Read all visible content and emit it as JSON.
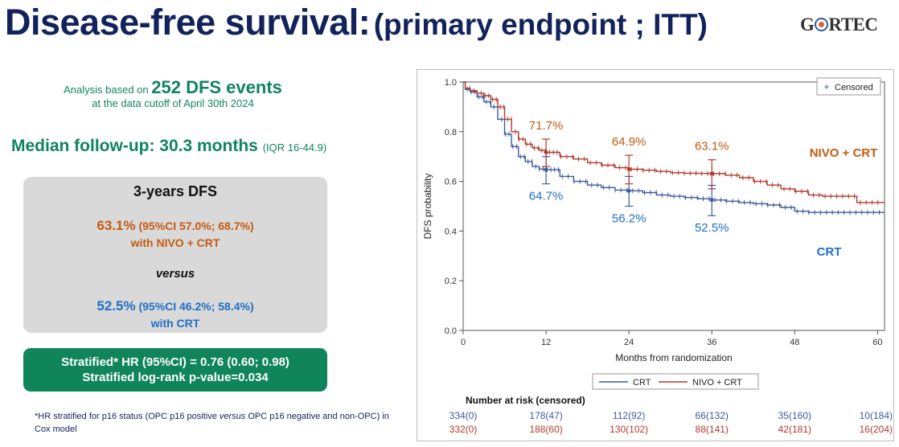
{
  "header": {
    "title_main": "Disease-free survival:",
    "title_sub": "(primary endpoint ; ITT)",
    "logo_text_before": "G",
    "logo_text_after": "RTEC"
  },
  "analysis": {
    "line1_prefix": "Analysis based on",
    "events": "252 DFS events",
    "line2": "at the data cutoff of April 30th 2024"
  },
  "followup": {
    "label": "Median follow-up: 30.3 months",
    "iqr": "(IQR 16-44.9)"
  },
  "dfs_box": {
    "heading": "3-years DFS",
    "nivo_pct": "63.1%",
    "nivo_ci": "(95%CI 57.0%; 68.7%)",
    "nivo_label": "with NIVO + CRT",
    "versus": "versus",
    "crt_pct": "52.5%",
    "crt_ci": "(95%CI 46.2%; 58.4%)",
    "crt_label": "with CRT"
  },
  "hr_box": {
    "line1": "Stratified* HR (95%CI) = 0.76 (0.60; 0.98)",
    "line2": "Stratified log-rank p-value=0.034"
  },
  "footnote": {
    "part1": "*HR stratified for p16 status (OPC p16 positive",
    "versus": "versus",
    "part2": "OPC p16 negative and non-OPC) in Cox model"
  },
  "colors": {
    "nivo": "#b03a2e",
    "crt": "#3c5aa0",
    "nivo_label": "#c55a11",
    "crt_label": "#1f6fc5",
    "green": "#10855c",
    "navy": "#12235b"
  },
  "chart_data": {
    "type": "line",
    "title": "",
    "xlabel": "Months from randomization",
    "ylabel": "DFS probability",
    "xlim": [
      0,
      61
    ],
    "ylim": [
      0,
      1
    ],
    "xticks": [
      0,
      12,
      24,
      36,
      48,
      60
    ],
    "yticks": [
      0.0,
      0.2,
      0.4,
      0.6,
      0.8,
      1.0
    ],
    "censored_legend": "Censored",
    "series": [
      {
        "name": "CRT",
        "key": "crt",
        "label": "CRT",
        "steps": [
          [
            0,
            1.0
          ],
          [
            0.3,
            0.97
          ],
          [
            1,
            0.96
          ],
          [
            2,
            0.94
          ],
          [
            3,
            0.92
          ],
          [
            4,
            0.9
          ],
          [
            5,
            0.85
          ],
          [
            6,
            0.79
          ],
          [
            7,
            0.74
          ],
          [
            8,
            0.7
          ],
          [
            9,
            0.68
          ],
          [
            10,
            0.66
          ],
          [
            11,
            0.65
          ],
          [
            12,
            0.647
          ],
          [
            14,
            0.62
          ],
          [
            16,
            0.6
          ],
          [
            18,
            0.585
          ],
          [
            20,
            0.575
          ],
          [
            22,
            0.565
          ],
          [
            24,
            0.562
          ],
          [
            26,
            0.555
          ],
          [
            28,
            0.545
          ],
          [
            30,
            0.54
          ],
          [
            32,
            0.535
          ],
          [
            34,
            0.53
          ],
          [
            36,
            0.525
          ],
          [
            38,
            0.52
          ],
          [
            40,
            0.515
          ],
          [
            42,
            0.51
          ],
          [
            44,
            0.505
          ],
          [
            46,
            0.495
          ],
          [
            48,
            0.48
          ],
          [
            50,
            0.475
          ],
          [
            52,
            0.475
          ],
          [
            61,
            0.475
          ]
        ],
        "annotations": [
          {
            "x": 12,
            "y": 0.647,
            "lo": 0.59,
            "hi": 0.7,
            "label": "64.7%"
          },
          {
            "x": 24,
            "y": 0.562,
            "lo": 0.5,
            "hi": 0.62,
            "label": "56.2%"
          },
          {
            "x": 36,
            "y": 0.525,
            "lo": 0.462,
            "hi": 0.584,
            "label": "52.5%"
          }
        ]
      },
      {
        "name": "NIVO + CRT",
        "key": "nivo",
        "label": "NIVO + CRT",
        "steps": [
          [
            0,
            1.0
          ],
          [
            0.3,
            0.975
          ],
          [
            1,
            0.965
          ],
          [
            2,
            0.955
          ],
          [
            3,
            0.945
          ],
          [
            4,
            0.93
          ],
          [
            5,
            0.9
          ],
          [
            6,
            0.85
          ],
          [
            7,
            0.8
          ],
          [
            8,
            0.77
          ],
          [
            9,
            0.75
          ],
          [
            10,
            0.735
          ],
          [
            11,
            0.725
          ],
          [
            12,
            0.717
          ],
          [
            14,
            0.7
          ],
          [
            16,
            0.69
          ],
          [
            18,
            0.675
          ],
          [
            20,
            0.665
          ],
          [
            22,
            0.655
          ],
          [
            24,
            0.649
          ],
          [
            26,
            0.645
          ],
          [
            28,
            0.64
          ],
          [
            30,
            0.635
          ],
          [
            32,
            0.633
          ],
          [
            34,
            0.632
          ],
          [
            36,
            0.631
          ],
          [
            38,
            0.625
          ],
          [
            40,
            0.615
          ],
          [
            42,
            0.6
          ],
          [
            44,
            0.585
          ],
          [
            46,
            0.57
          ],
          [
            48,
            0.56
          ],
          [
            50,
            0.545
          ],
          [
            52,
            0.54
          ],
          [
            55,
            0.54
          ],
          [
            57,
            0.515
          ],
          [
            61,
            0.515
          ]
        ],
        "annotations": [
          {
            "x": 12,
            "y": 0.717,
            "lo": 0.66,
            "hi": 0.77,
            "label": "71.7%"
          },
          {
            "x": 24,
            "y": 0.649,
            "lo": 0.59,
            "hi": 0.705,
            "label": "64.9%"
          },
          {
            "x": 36,
            "y": 0.631,
            "lo": 0.57,
            "hi": 0.687,
            "label": "63.1%"
          }
        ]
      }
    ],
    "legend": [
      "CRT",
      "NIVO + CRT"
    ],
    "risk_table": {
      "title": "Number at risk (censored)",
      "times": [
        0,
        12,
        24,
        36,
        48,
        60
      ],
      "rows": [
        {
          "key": "crt",
          "values": [
            "334(0)",
            "178(47)",
            "112(92)",
            "66(132)",
            "35(160)",
            "10(184)"
          ]
        },
        {
          "key": "nivo",
          "values": [
            "332(0)",
            "188(60)",
            "130(102)",
            "88(141)",
            "42(181)",
            "16(204)"
          ]
        }
      ]
    }
  }
}
